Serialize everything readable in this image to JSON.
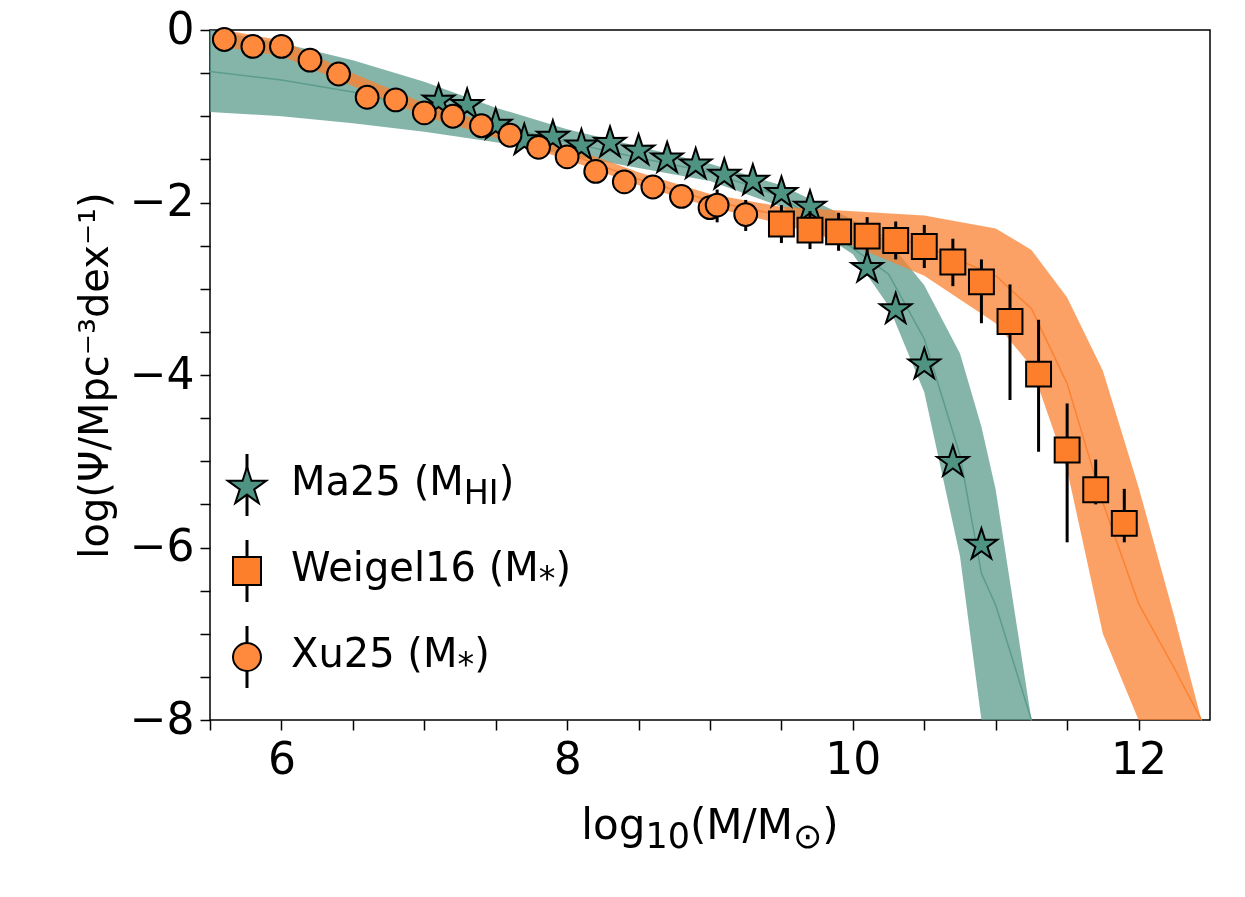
{
  "chart_data": {
    "type": "scatter",
    "xlabel": "log$_{10}$(M/M$_{⊙}$)",
    "ylabel": "log(Ψ/Mpc⁻³dex⁻¹)",
    "xlim": [
      5.5,
      12.5
    ],
    "ylim": [
      -8,
      0
    ],
    "xticks": [
      {
        "value": 5.5,
        "label": null
      },
      6,
      {
        "value": 6.5,
        "label": null
      },
      {
        "value": 7,
        "label": null
      },
      {
        "value": 7.5,
        "label": null
      },
      8,
      {
        "value": 8.5,
        "label": null
      },
      {
        "value": 9,
        "label": null
      },
      {
        "value": 9.5,
        "label": null
      },
      10,
      {
        "value": 10.5,
        "label": null
      },
      {
        "value": 11,
        "label": null
      },
      {
        "value": 11.5,
        "label": null
      },
      12
    ],
    "yticks": [
      -8,
      {
        "value": -7.5,
        "label": null
      },
      {
        "value": -7,
        "label": null
      },
      {
        "value": -6.5,
        "label": null
      },
      -6,
      {
        "value": -5.5,
        "label": null
      },
      {
        "value": -5,
        "label": null
      },
      {
        "value": -4.5,
        "label": null
      },
      -4,
      {
        "value": -3.5,
        "label": null
      },
      {
        "value": -3,
        "label": null
      },
      {
        "value": -2.5,
        "label": null
      },
      -2,
      {
        "value": -1.5,
        "label": null
      },
      {
        "value": -1,
        "label": null
      },
      {
        "value": -0.5,
        "label": null
      },
      0
    ],
    "grid": false,
    "legend": "bottom left",
    "series": [
      {
        "type": "line",
        "color": "#5c9c8c",
        "x": [
          5.5,
          6,
          6.5,
          7,
          7.5,
          8,
          8.5,
          9,
          9.5,
          10,
          10.25,
          10.5,
          10.75,
          10.9,
          11,
          11.25
        ],
        "values": [
          -0.48,
          -0.58,
          -0.72,
          null,
          -1.1,
          -1.3,
          -1.48,
          -1.65,
          -1.93,
          null,
          -2.83,
          -3.58,
          -4.93,
          -6.3,
          -6.67,
          -8
        ],
        "lower": [
          -0.95,
          -1,
          -1.08,
          -1.18,
          -1.3,
          -1.45,
          -1.6,
          -1.75,
          -2.05,
          -2.6,
          -3.2,
          -4.2,
          -6.1,
          -8,
          -8,
          -8
        ],
        "upper": [
          0,
          -0.15,
          -0.35,
          -0.6,
          -0.9,
          -1.15,
          -1.35,
          -1.55,
          -1.8,
          -2.2,
          -2.45,
          -2.96,
          -3.75,
          -4.6,
          -5.33,
          -8
        ]
      },
      {
        "type": "line",
        "color": "#fb8232",
        "x": [
          5.6,
          6,
          6.5,
          7,
          7.5,
          8,
          8.5,
          9,
          9.5,
          10,
          10.5,
          11,
          11.25,
          11.5,
          11.75,
          12,
          12.25,
          12.44
        ],
        "values": [
          -0.1,
          -0.21,
          -0.58,
          -0.93,
          -1.18,
          -1.43,
          -1.73,
          -1.98,
          -2.15,
          -2.3,
          -2.5,
          -2.85,
          -3.23,
          -4.1,
          -5.48,
          -6.65,
          -7.4,
          -8
        ],
        "lower": [
          -0.2,
          -0.3,
          -0.65,
          -1,
          -1.25,
          -1.5,
          -1.8,
          -2.05,
          -2.25,
          -2.5,
          -2.85,
          -3.4,
          -3.9,
          -5.1,
          -7,
          -8,
          -8,
          -8
        ],
        "upper": [
          0,
          -0.12,
          -0.5,
          -0.85,
          -1.1,
          -1.35,
          -1.65,
          -1.9,
          -2.05,
          -2.1,
          -2.15,
          -2.3,
          -2.55,
          -3.1,
          -3.95,
          -5.3,
          -6.8,
          -8
        ]
      },
      {
        "type": "scatter",
        "name": "Ma25 (M$_{HI}$)",
        "marker": "star",
        "color": "#4f9483",
        "x": [
          7.1,
          7.3,
          7.5,
          7.7,
          7.9,
          8.1,
          8.3,
          8.5,
          8.7,
          8.9,
          9.1,
          9.3,
          9.5,
          9.7,
          9.9,
          10.1,
          10.3,
          10.5,
          10.7,
          10.9
        ],
        "values": [
          -0.82,
          -0.87,
          -1.1,
          -1.28,
          -1.24,
          -1.34,
          -1.31,
          -1.4,
          -1.49,
          -1.56,
          -1.68,
          -1.75,
          -1.89,
          -2.05,
          null,
          -2.76,
          -3.24,
          -3.88,
          -5.01,
          -5.97
        ]
      },
      {
        "type": "scatter",
        "name": "Weigel16 (M$_{*}$)",
        "marker": "square",
        "color": "#fd7f2c",
        "x": [
          9.5,
          9.7,
          9.9,
          10.1,
          10.3,
          10.5,
          10.7,
          10.9,
          11.1,
          11.3,
          11.5,
          11.7,
          11.9
        ],
        "values": [
          -2.25,
          -2.32,
          -2.34,
          -2.39,
          -2.44,
          -2.51,
          -2.69,
          -2.92,
          -3.38,
          -3.99,
          -4.87,
          -5.33,
          -5.72
        ],
        "errors": [
          0.22,
          0.22,
          0.22,
          0.22,
          0.22,
          0.25,
          [
            -2.97,
            -2.42
          ],
          [
            -3.4,
            -2.66
          ],
          [
            -4.29,
            -2.95
          ],
          [
            -4.89,
            -3.36
          ],
          [
            -5.94,
            -4.33
          ],
          [
            -5.5,
            -4.98
          ],
          [
            -5.94,
            -5.32
          ]
        ]
      },
      {
        "type": "scatter",
        "name": "Xu25 (M$_{*}$)",
        "marker": "circle",
        "color": "#ff8a3d",
        "x": [
          5.6,
          5.8,
          6,
          6.2,
          6.4,
          6.6,
          6.8,
          7,
          7.2,
          7.4,
          7.6,
          7.8,
          8,
          8.2,
          8.4,
          8.6,
          8.8,
          9,
          9.05,
          9.25
        ],
        "values": [
          -0.11,
          -0.19,
          -0.19,
          -0.35,
          -0.51,
          -0.78,
          -0.81,
          -0.96,
          -1,
          -1.11,
          -1.22,
          -1.36,
          -1.47,
          -1.64,
          -1.76,
          -1.82,
          -1.93,
          -2.06,
          -2.03,
          -2.14
        ],
        "errors": [
          null,
          null,
          null,
          null,
          null,
          null,
          null,
          null,
          null,
          null,
          null,
          null,
          null,
          null,
          null,
          null,
          null,
          null,
          [
            -2.23,
            -1.85
          ],
          [
            -2.33,
            -1.97
          ]
        ]
      }
    ]
  }
}
